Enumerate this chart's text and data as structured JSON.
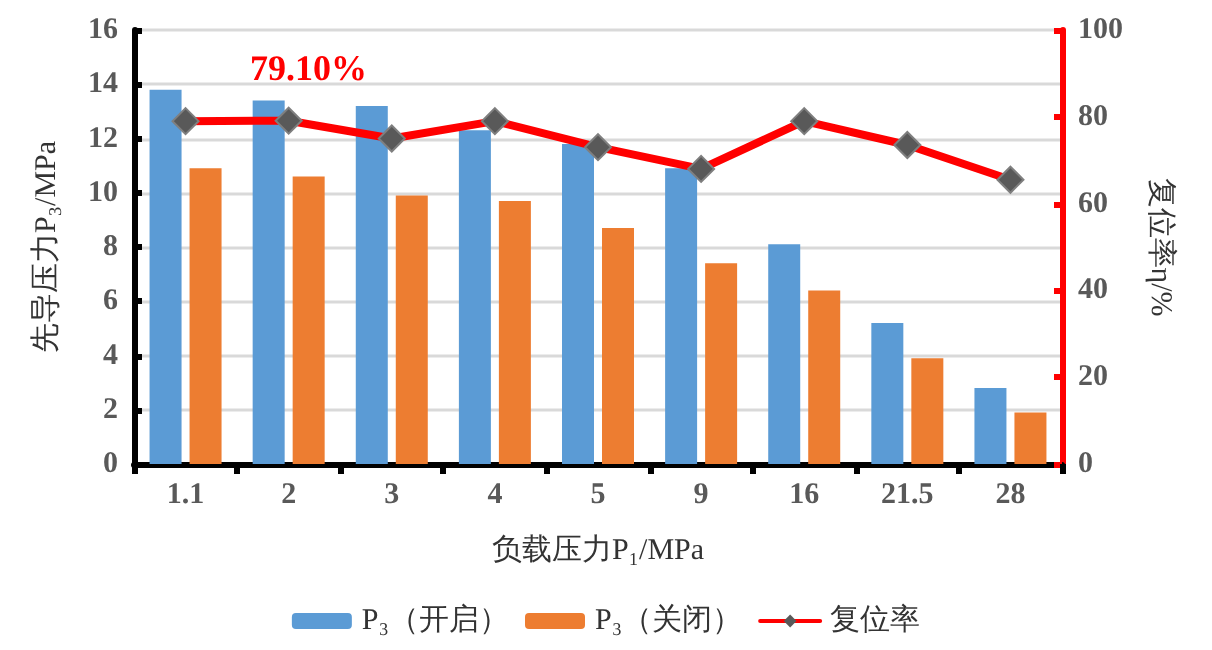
{
  "chart_data": {
    "type": "bar",
    "xlabel": "负载压力P₁/MPa",
    "ylabel": "先导压力P₃/MPa",
    "y2label": "复位率η/%",
    "categories": [
      "1.1",
      "2",
      "3",
      "4",
      "5",
      "9",
      "16",
      "21.5",
      "28"
    ],
    "series": [
      {
        "name": "P₃（开启）",
        "color": "#5b9bd5",
        "values": [
          13.8,
          13.4,
          13.2,
          12.3,
          11.8,
          10.9,
          8.1,
          5.2,
          2.8
        ]
      },
      {
        "name": "P₃（关闭）",
        "color": "#ed7d31",
        "values": [
          10.9,
          10.6,
          9.9,
          9.7,
          8.7,
          7.4,
          6.4,
          3.9,
          1.9
        ]
      },
      {
        "name": "复位率",
        "type": "line",
        "axis": "y2",
        "color": "#ff0000",
        "marker": "diamond",
        "values": [
          79,
          79.1,
          75,
          79,
          73,
          68,
          79,
          73.5,
          65.5
        ]
      }
    ],
    "ylim": [
      0,
      16
    ],
    "yticks": [
      0,
      2,
      4,
      6,
      8,
      10,
      12,
      14,
      16
    ],
    "y2lim": [
      0,
      100
    ],
    "y2ticks": [
      0,
      20,
      40,
      60,
      80,
      100
    ],
    "annotations": [
      "79.10%"
    ],
    "grid": "y",
    "legend": "bottom"
  }
}
